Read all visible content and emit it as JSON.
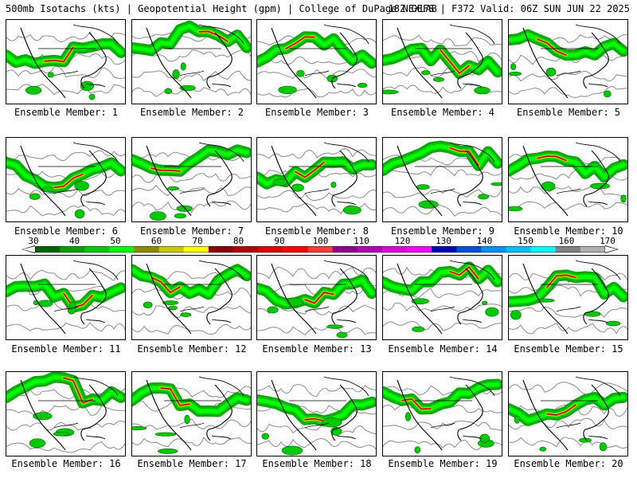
{
  "header": {
    "left": "500mb Isotachs (kts) | Geopotential Height (gpm) | College of DuPage NEXLAB",
    "right": "18Z GEFS | F372 Valid: 06Z SUN JUN 22 2025"
  },
  "members": [
    "Ensemble Member: 1",
    "Ensemble Member: 2",
    "Ensemble Member: 3",
    "Ensemble Member: 4",
    "Ensemble Member: 5",
    "Ensemble Member: 6",
    "Ensemble Member: 7",
    "Ensemble Member: 8",
    "Ensemble Member: 9",
    "Ensemble Member: 10",
    "Ensemble Member: 11",
    "Ensemble Member: 12",
    "Ensemble Member: 13",
    "Ensemble Member: 14",
    "Ensemble Member: 15",
    "Ensemble Member: 16",
    "Ensemble Member: 17",
    "Ensemble Member: 18",
    "Ensemble Member: 19",
    "Ensemble Member: 20"
  ],
  "colorbar": {
    "labels": [
      "30",
      "40",
      "50",
      "60",
      "70",
      "80",
      "90",
      "100",
      "110",
      "120",
      "130",
      "140",
      "150",
      "160",
      "170"
    ],
    "colors": [
      "#006400",
      "#00a000",
      "#00c800",
      "#00ff00",
      "#8c8c00",
      "#c8c800",
      "#ffff00",
      "#8c0000",
      "#b40000",
      "#dc0000",
      "#ff0000",
      "#ff3c3c",
      "#8c008c",
      "#b400b4",
      "#dc00dc",
      "#ff00ff",
      "#0000b4",
      "#0050dc",
      "#0090ff",
      "#00c0ff",
      "#00ffff",
      "#808080",
      "#b0b0b0"
    ]
  }
}
